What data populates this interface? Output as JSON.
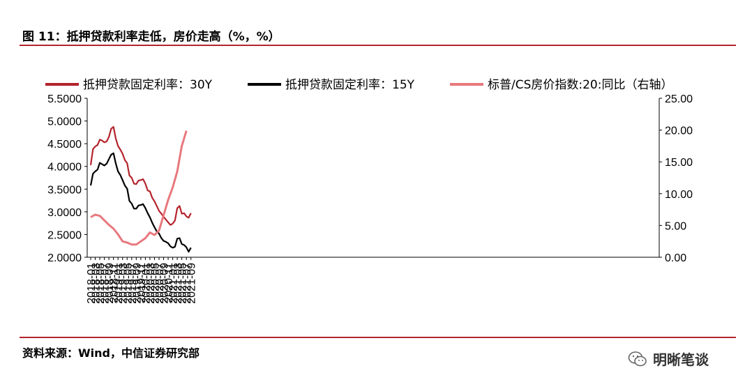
{
  "figure_title": "图 11：抵押贷款利率走低，房价走高（%，%）",
  "source": "资料来源：Wind，中信证券研究部",
  "brand": "明晰笔谈",
  "brand_icon": "wechat-icon",
  "chart_data": {
    "type": "line",
    "title": "",
    "left_axis": {
      "ylim": [
        2.0,
        5.5
      ],
      "ticks": [
        "5.5000",
        "5.0000",
        "4.5000",
        "4.0000",
        "3.5000",
        "3.0000",
        "2.5000",
        "2.0000"
      ]
    },
    "right_axis": {
      "ylim": [
        0,
        25
      ],
      "ticks": [
        "25.00",
        "20.00",
        "15.00",
        "10.00",
        "5.00",
        "0.00"
      ]
    },
    "x_ticks": [
      "2018-01",
      "2018-03",
      "2018-05",
      "2018-07",
      "2018-09",
      "2018-11",
      "2019-01",
      "2019-03",
      "2019-05",
      "2019-07",
      "2019-09",
      "2019-11",
      "2020-01",
      "2020-03",
      "2020-05",
      "2020-07",
      "2020-09",
      "2020-11",
      "2021-01",
      "2021-03",
      "2021-05",
      "2021-07",
      "2021-09"
    ],
    "legend_position": "top",
    "series": [
      {
        "name": "抵押贷款固定利率：30Y",
        "axis": "left",
        "color": "#b4242c",
        "x": [
          "2018-01",
          "2018-02",
          "2018-03",
          "2018-04",
          "2018-05",
          "2018-06",
          "2018-07",
          "2018-08",
          "2018-09",
          "2018-10",
          "2018-11",
          "2018-12",
          "2019-01",
          "2019-02",
          "2019-03",
          "2019-04",
          "2019-05",
          "2019-06",
          "2019-07",
          "2019-08",
          "2019-09",
          "2019-10",
          "2019-11",
          "2019-12",
          "2020-01",
          "2020-02",
          "2020-03",
          "2020-04",
          "2020-05",
          "2020-06",
          "2020-07",
          "2020-08",
          "2020-09",
          "2020-10",
          "2020-11",
          "2020-12",
          "2021-01",
          "2021-02",
          "2021-03",
          "2021-04",
          "2021-05",
          "2021-06",
          "2021-07",
          "2021-08",
          "2021-09"
        ],
        "values": [
          4.03,
          4.38,
          4.44,
          4.47,
          4.59,
          4.57,
          4.53,
          4.55,
          4.65,
          4.83,
          4.87,
          4.62,
          4.45,
          4.37,
          4.28,
          4.14,
          4.07,
          3.8,
          3.75,
          3.62,
          3.61,
          3.69,
          3.7,
          3.72,
          3.62,
          3.47,
          3.45,
          3.31,
          3.23,
          3.13,
          3.02,
          2.96,
          2.89,
          2.83,
          2.77,
          2.71,
          2.74,
          2.81,
          3.08,
          3.13,
          2.96,
          2.97,
          2.9,
          2.87,
          2.97
        ]
      },
      {
        "name": "抵押贷款固定利率：15Y",
        "axis": "left",
        "color": "#000000",
        "x": [
          "2018-01",
          "2018-02",
          "2018-03",
          "2018-04",
          "2018-05",
          "2018-06",
          "2018-07",
          "2018-08",
          "2018-09",
          "2018-10",
          "2018-11",
          "2018-12",
          "2019-01",
          "2019-02",
          "2019-03",
          "2019-04",
          "2019-05",
          "2019-06",
          "2019-07",
          "2019-08",
          "2019-09",
          "2019-10",
          "2019-11",
          "2019-12",
          "2020-01",
          "2020-02",
          "2020-03",
          "2020-04",
          "2020-05",
          "2020-06",
          "2020-07",
          "2020-08",
          "2020-09",
          "2020-10",
          "2020-11",
          "2020-12",
          "2021-01",
          "2021-02",
          "2021-03",
          "2021-04",
          "2021-05",
          "2021-06",
          "2021-07",
          "2021-08",
          "2021-09"
        ],
        "values": [
          3.58,
          3.84,
          3.89,
          3.93,
          4.08,
          4.05,
          4.02,
          4.06,
          4.16,
          4.26,
          4.29,
          4.07,
          3.89,
          3.81,
          3.7,
          3.58,
          3.51,
          3.24,
          3.18,
          3.07,
          3.07,
          3.14,
          3.15,
          3.17,
          3.08,
          2.97,
          2.88,
          2.76,
          2.66,
          2.57,
          2.52,
          2.42,
          2.36,
          2.34,
          2.31,
          2.24,
          2.21,
          2.23,
          2.41,
          2.42,
          2.29,
          2.27,
          2.22,
          2.12,
          2.21
        ]
      },
      {
        "name": "标普/CS房价指数:20:同比（右轴）",
        "axis": "right",
        "color": "#e8787e",
        "x": [
          "2018-01",
          "2018-03",
          "2018-05",
          "2018-07",
          "2018-09",
          "2018-11",
          "2019-01",
          "2019-03",
          "2019-05",
          "2019-07",
          "2019-09",
          "2019-11",
          "2020-01",
          "2020-03",
          "2020-05",
          "2020-07",
          "2020-09",
          "2020-11",
          "2021-01",
          "2021-03",
          "2021-05",
          "2021-07"
        ],
        "values": [
          6.3,
          6.7,
          6.5,
          5.8,
          5.1,
          4.5,
          3.6,
          2.5,
          2.3,
          2.0,
          2.0,
          2.5,
          3.0,
          3.9,
          3.5,
          4.2,
          6.6,
          9.0,
          11.0,
          13.5,
          17.5,
          19.9
        ]
      }
    ]
  }
}
